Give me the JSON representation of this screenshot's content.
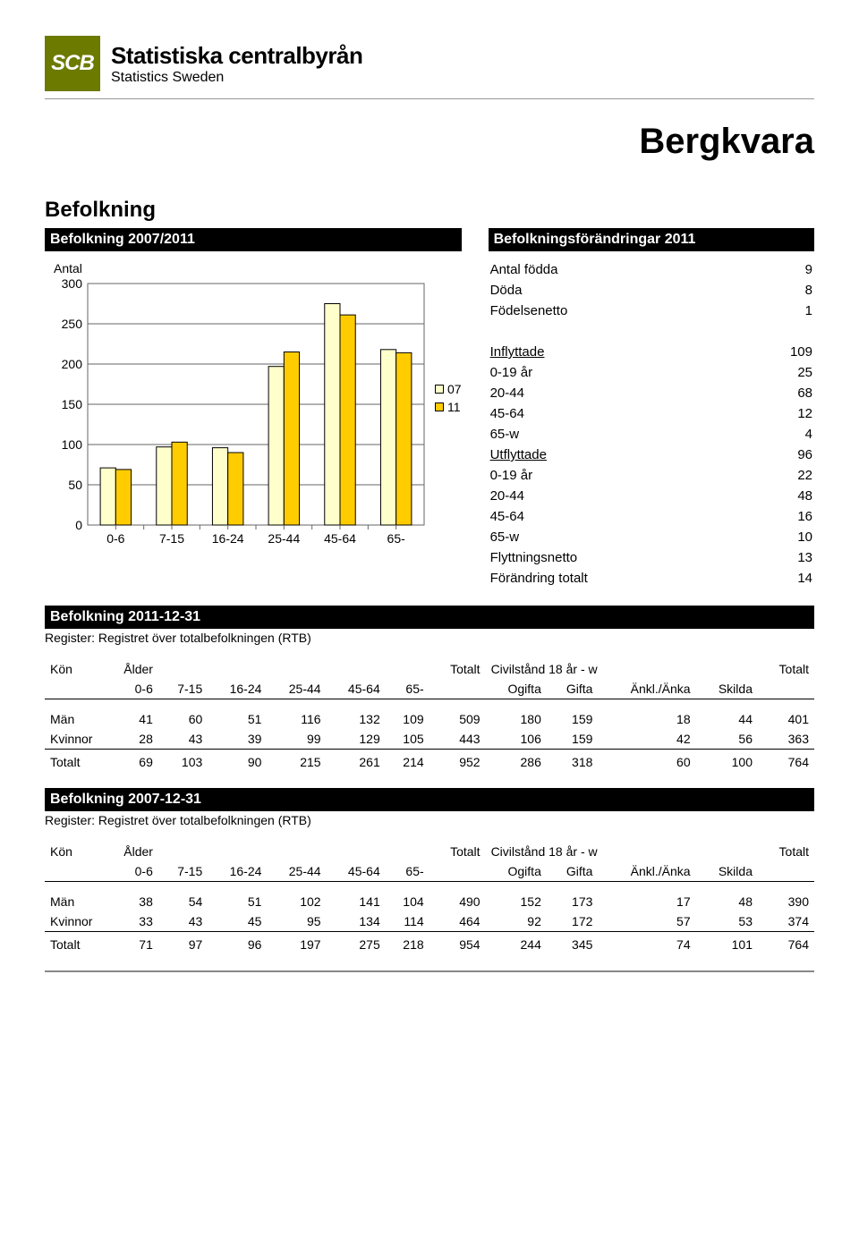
{
  "logo": {
    "abbrev": "SCB",
    "line1": "Statistiska centralbyrån",
    "line2": "Statistics Sweden"
  },
  "page_title": "Bergkvara",
  "section_heading": "Befolkning",
  "chart": {
    "header": "Befolkning 2007/2011",
    "type": "bar",
    "y_label": "Antal",
    "categories": [
      "0-6",
      "7-15",
      "16-24",
      "25-44",
      "45-64",
      "65-"
    ],
    "series": [
      {
        "label": "07",
        "color": "#ffffcc",
        "values": [
          71,
          97,
          96,
          197,
          275,
          218
        ]
      },
      {
        "label": "11",
        "color": "#ffcc00",
        "values": [
          69,
          103,
          90,
          215,
          261,
          214
        ]
      }
    ],
    "ylim": [
      0,
      300
    ],
    "ytick_step": 50,
    "background_color": "#ffffff",
    "grid_color": "#666666",
    "bar_border": "#000000",
    "bar_group_width": 0.55,
    "font_size_axis": 14
  },
  "changes": {
    "header": "Befolkningsförändringar 2011",
    "rows_top": [
      {
        "label": "Antal födda",
        "value": 9
      },
      {
        "label": "Döda",
        "value": 8
      },
      {
        "label": "Födelsenetto",
        "value": 1
      }
    ],
    "inflyttade": {
      "label": "Inflyttade",
      "value": 109,
      "sub": [
        {
          "label": "0-19 år",
          "value": 25
        },
        {
          "label": "20-44",
          "value": 68
        },
        {
          "label": "45-64",
          "value": 12
        },
        {
          "label": "65-w",
          "value": 4
        }
      ]
    },
    "utflyttade": {
      "label": "Utflyttade",
      "value": 96,
      "sub": [
        {
          "label": "0-19 år",
          "value": 22
        },
        {
          "label": "20-44",
          "value": 48
        },
        {
          "label": "45-64",
          "value": 16
        },
        {
          "label": "65-w",
          "value": 10
        }
      ]
    },
    "rows_bottom": [
      {
        "label": "Flyttningsnetto",
        "value": 13
      },
      {
        "label": "Förändring totalt",
        "value": 14
      }
    ]
  },
  "pop2011": {
    "header": "Befolkning 2011-12-31",
    "note": "Register: Registret över totalbefolkningen (RTB)",
    "col_groups": {
      "kon": "Kön",
      "alder": "Ålder",
      "totalt": "Totalt",
      "civil": "Civilstånd 18 år - w",
      "totalt2": "Totalt"
    },
    "age_cols": [
      "0-6",
      "7-15",
      "16-24",
      "25-44",
      "45-64",
      "65-"
    ],
    "civil_cols": [
      "Ogifta",
      "Gifta",
      "Änkl./Änka",
      "Skilda"
    ],
    "rows": [
      {
        "label": "Män",
        "age": [
          41,
          60,
          51,
          116,
          132,
          109
        ],
        "tot": 509,
        "civil": [
          180,
          159,
          18,
          44
        ],
        "tot2": 401
      },
      {
        "label": "Kvinnor",
        "age": [
          28,
          43,
          39,
          99,
          129,
          105
        ],
        "tot": 443,
        "civil": [
          106,
          159,
          42,
          56
        ],
        "tot2": 363
      }
    ],
    "total": {
      "label": "Totalt",
      "age": [
        69,
        103,
        90,
        215,
        261,
        214
      ],
      "tot": 952,
      "civil": [
        286,
        318,
        60,
        100
      ],
      "tot2": 764
    }
  },
  "pop2007": {
    "header": "Befolkning 2007-12-31",
    "note": "Register: Registret över totalbefolkningen (RTB)",
    "col_groups": {
      "kon": "Kön",
      "alder": "Ålder",
      "totalt": "Totalt",
      "civil": "Civilstånd 18 år - w",
      "totalt2": "Totalt"
    },
    "age_cols": [
      "0-6",
      "7-15",
      "16-24",
      "25-44",
      "45-64",
      "65-"
    ],
    "civil_cols": [
      "Ogifta",
      "Gifta",
      "Änkl./Änka",
      "Skilda"
    ],
    "rows": [
      {
        "label": "Män",
        "age": [
          38,
          54,
          51,
          102,
          141,
          104
        ],
        "tot": 490,
        "civil": [
          152,
          173,
          17,
          48
        ],
        "tot2": 390
      },
      {
        "label": "Kvinnor",
        "age": [
          33,
          43,
          45,
          95,
          134,
          114
        ],
        "tot": 464,
        "civil": [
          92,
          172,
          57,
          53
        ],
        "tot2": 374
      }
    ],
    "total": {
      "label": "Totalt",
      "age": [
        71,
        97,
        96,
        197,
        275,
        218
      ],
      "tot": 954,
      "civil": [
        244,
        345,
        74,
        101
      ],
      "tot2": 764
    }
  }
}
